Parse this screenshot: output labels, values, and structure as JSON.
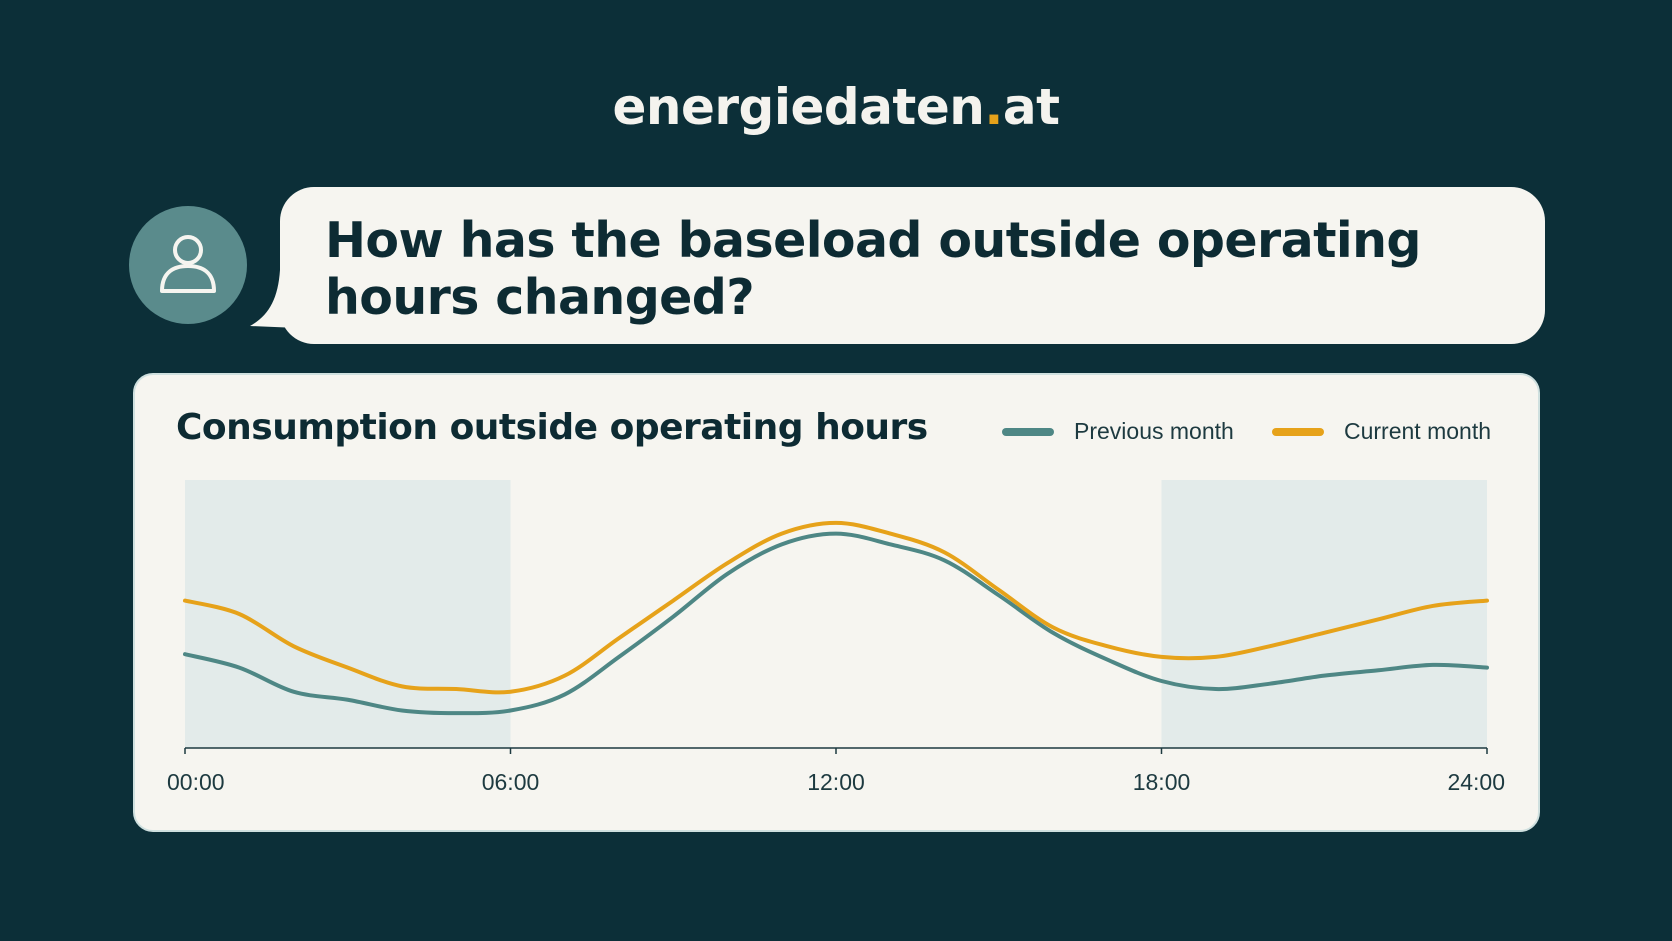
{
  "brand": {
    "name": "energiedaten",
    "dot": ".",
    "tld": "at"
  },
  "chat": {
    "question": "How has the baseload outside operating hours changed?"
  },
  "icons": {
    "user": "user-icon"
  },
  "colors": {
    "background": "#0c2f38",
    "previous": "#4e8785",
    "current": "#e6a21a",
    "shade": "#e3ebea"
  },
  "chart_data": {
    "type": "line",
    "title": "Consumption outside operating hours",
    "xlabel": "",
    "ylabel": "",
    "x_ticks": [
      "00:00",
      "06:00",
      "12:00",
      "18:00",
      "24:00"
    ],
    "xlim": [
      0,
      24
    ],
    "ylim": [
      0,
      100
    ],
    "shaded_ranges": [
      [
        0,
        6
      ],
      [
        18,
        24
      ]
    ],
    "legend_position": "top-right",
    "grid": false,
    "x": [
      0,
      1,
      2,
      3,
      4,
      5,
      6,
      7,
      8,
      9,
      10,
      11,
      12,
      13,
      14,
      15,
      16,
      17,
      18,
      19,
      20,
      21,
      22,
      23,
      24
    ],
    "series": [
      {
        "name": "Previous month",
        "color": "#4e8785",
        "values": [
          35,
          30,
          21,
          18,
          14,
          13,
          14,
          20,
          34,
          49,
          65,
          76,
          80,
          76,
          70,
          57,
          43,
          33,
          25,
          22,
          24,
          27,
          29,
          31,
          30
        ]
      },
      {
        "name": "Current month",
        "color": "#e6a21a",
        "values": [
          55,
          50,
          38,
          30,
          23,
          22,
          21,
          27,
          41,
          55,
          69,
          80,
          84,
          80,
          73,
          59,
          45,
          38,
          34,
          34,
          38,
          43,
          48,
          53,
          55
        ]
      }
    ]
  }
}
